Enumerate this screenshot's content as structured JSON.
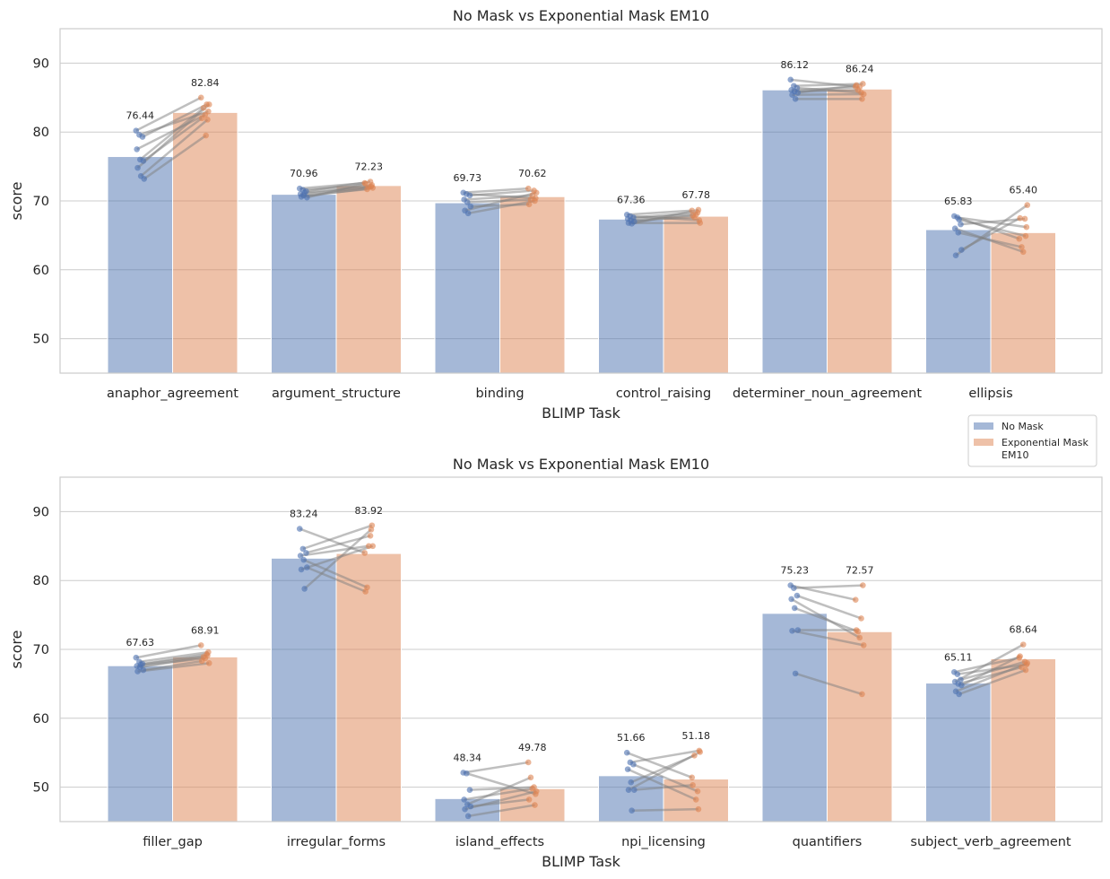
{
  "legend": {
    "items": [
      {
        "label": "No Mask",
        "color": "#4c72b0"
      },
      {
        "label": "Exponential Mask\nEM10",
        "color": "#dd8452"
      }
    ],
    "placement": "right, between panels"
  },
  "chart_data": [
    {
      "type": "bar",
      "title": "No Mask vs Exponential Mask EM10",
      "xlabel": "BLIMP Task",
      "ylabel": "score",
      "ylim": [
        45,
        95
      ],
      "yticks": [
        50,
        60,
        70,
        80,
        90
      ],
      "grid": true,
      "categories": [
        "anaphor_agreement",
        "argument_structure",
        "binding",
        "control_raising",
        "determiner_noun_agreement",
        "ellipsis"
      ],
      "series": [
        {
          "name": "No Mask",
          "color": "#4c72b0",
          "values": [
            76.44,
            70.96,
            69.73,
            67.36,
            86.12,
            65.83
          ]
        },
        {
          "name": "Exponential Mask\nEM10",
          "color": "#dd8452",
          "values": [
            82.84,
            72.23,
            70.62,
            67.78,
            86.24,
            65.4
          ]
        }
      ],
      "data_labels": [
        [
          "76.44",
          "70.96",
          "69.73",
          "67.36",
          "86.12",
          "65.83"
        ],
        [
          "82.84",
          "72.23",
          "70.62",
          "67.78",
          "86.24",
          "65.40"
        ]
      ],
      "paired_points": [
        [
          [
            80.2,
            85.0
          ],
          [
            79.6,
            83.0
          ],
          [
            79.3,
            84.0
          ],
          [
            77.5,
            82.5
          ],
          [
            76.0,
            83.5
          ],
          [
            75.8,
            82.0
          ],
          [
            74.8,
            84.0
          ],
          [
            73.6,
            81.8
          ],
          [
            73.2,
            79.5
          ]
        ],
        [
          [
            71.8,
            72.6
          ],
          [
            71.6,
            72.3
          ],
          [
            71.4,
            72.8
          ],
          [
            71.0,
            72.0
          ],
          [
            70.8,
            71.7
          ],
          [
            70.5,
            72.5
          ],
          [
            70.6,
            71.9
          ],
          [
            71.2,
            72.1
          ]
        ],
        [
          [
            71.2,
            71.8
          ],
          [
            71.0,
            70.4
          ],
          [
            70.8,
            71.5
          ],
          [
            70.2,
            70.8
          ],
          [
            69.8,
            70.2
          ],
          [
            69.2,
            69.5
          ],
          [
            68.6,
            71.2
          ],
          [
            68.2,
            70.0
          ]
        ],
        [
          [
            68.0,
            68.6
          ],
          [
            67.8,
            67.2
          ],
          [
            67.6,
            68.3
          ],
          [
            67.4,
            68.0
          ],
          [
            67.2,
            67.6
          ],
          [
            67.0,
            67.9
          ],
          [
            66.8,
            66.8
          ],
          [
            66.7,
            68.7
          ]
        ],
        [
          [
            87.6,
            86.6
          ],
          [
            86.7,
            87.0
          ],
          [
            86.4,
            85.7
          ],
          [
            86.1,
            86.5
          ],
          [
            85.9,
            86.1
          ],
          [
            85.7,
            86.8
          ],
          [
            85.4,
            85.5
          ],
          [
            84.8,
            84.8
          ]
        ],
        [
          [
            67.8,
            64.5
          ],
          [
            67.6,
            66.2
          ],
          [
            66.6,
            67.4
          ],
          [
            66.0,
            62.6
          ],
          [
            65.4,
            63.3
          ],
          [
            62.9,
            67.5
          ],
          [
            62.1,
            69.4
          ],
          [
            67.3,
            64.9
          ]
        ]
      ]
    },
    {
      "type": "bar",
      "title": "No Mask vs Exponential Mask EM10",
      "xlabel": "BLIMP Task",
      "ylabel": "score",
      "ylim": [
        45,
        95
      ],
      "yticks": [
        50,
        60,
        70,
        80,
        90
      ],
      "grid": true,
      "categories": [
        "filler_gap",
        "irregular_forms",
        "island_effects",
        "npi_licensing",
        "quantifiers",
        "subject_verb_agreement"
      ],
      "series": [
        {
          "name": "No Mask",
          "color": "#4c72b0",
          "values": [
            67.63,
            83.24,
            48.34,
            51.66,
            75.23,
            65.11
          ]
        },
        {
          "name": "Exponential Mask\nEM10",
          "color": "#dd8452",
          "values": [
            68.91,
            83.92,
            49.78,
            51.18,
            72.57,
            68.64
          ]
        }
      ],
      "data_labels": [
        [
          "67.63",
          "83.24",
          "48.34",
          "51.66",
          "75.23",
          "65.11"
        ],
        [
          "68.91",
          "83.92",
          "49.78",
          "51.18",
          "72.57",
          "68.64"
        ]
      ],
      "paired_points": [
        [
          [
            68.8,
            70.6
          ],
          [
            68.2,
            69.6
          ],
          [
            67.9,
            69.3
          ],
          [
            67.6,
            68.7
          ],
          [
            67.4,
            68.9
          ],
          [
            67.0,
            68.3
          ],
          [
            66.8,
            68.0
          ],
          [
            67.8,
            69.1
          ]
        ],
        [
          [
            87.5,
            84.0
          ],
          [
            84.6,
            88.0
          ],
          [
            84.0,
            86.5
          ],
          [
            83.6,
            85.0
          ],
          [
            83.0,
            79.0
          ],
          [
            81.9,
            78.4
          ],
          [
            81.6,
            85.0
          ],
          [
            78.8,
            87.4
          ]
        ],
        [
          [
            52.1,
            53.6
          ],
          [
            52.0,
            49.0
          ],
          [
            49.6,
            50.0
          ],
          [
            48.2,
            49.8
          ],
          [
            47.5,
            51.4
          ],
          [
            47.2,
            48.2
          ],
          [
            46.8,
            49.4
          ],
          [
            45.8,
            47.4
          ]
        ],
        [
          [
            55.0,
            51.4
          ],
          [
            53.6,
            55.3
          ],
          [
            53.3,
            49.4
          ],
          [
            52.6,
            48.2
          ],
          [
            50.7,
            54.6
          ],
          [
            49.6,
            50.3
          ],
          [
            49.6,
            55.1
          ],
          [
            46.6,
            46.8
          ]
        ],
        [
          [
            79.3,
            77.2
          ],
          [
            78.9,
            79.3
          ],
          [
            77.8,
            74.5
          ],
          [
            77.3,
            71.7
          ],
          [
            76.0,
            72.6
          ],
          [
            72.8,
            72.8
          ],
          [
            72.7,
            70.6
          ],
          [
            66.5,
            63.5
          ]
        ],
        [
          [
            66.7,
            68.8
          ],
          [
            66.4,
            67.8
          ],
          [
            65.6,
            68.2
          ],
          [
            65.3,
            70.7
          ],
          [
            65.0,
            67.4
          ],
          [
            64.8,
            69.0
          ],
          [
            63.9,
            68.0
          ],
          [
            63.5,
            67.0
          ]
        ]
      ]
    }
  ]
}
